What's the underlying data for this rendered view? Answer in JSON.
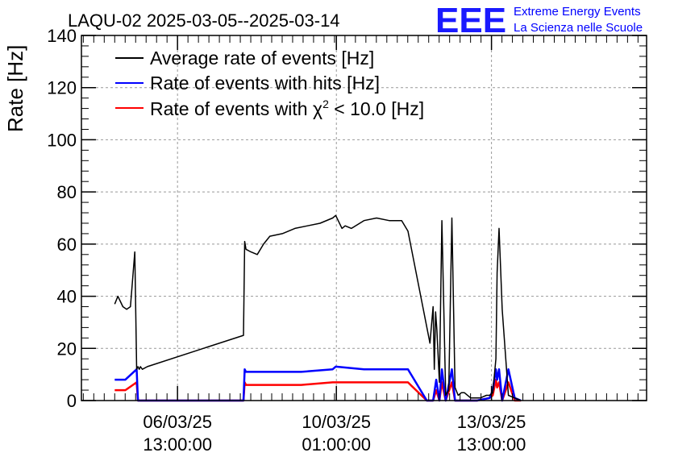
{
  "chart_data": {
    "type": "line",
    "title": "LAQU-02 2025-03-05--2025-03-14",
    "xlabel": "",
    "ylabel": "Rate [Hz]",
    "ylim": [
      0,
      140
    ],
    "yticks": [
      0,
      20,
      40,
      60,
      80,
      100,
      120,
      140
    ],
    "x_unit": "days",
    "xlim": [
      0,
      9
    ],
    "xtick_values": [
      1.53,
      4.06,
      6.53
    ],
    "xticks": [
      {
        "date": "06/03/25",
        "time": "13:00:00"
      },
      {
        "date": "10/03/25",
        "time": "01:00:00"
      },
      {
        "date": "13/03/25",
        "time": "13:00:00"
      }
    ],
    "grid": true,
    "legend_position": "top-left",
    "series": [
      {
        "name": "Average rate of events [Hz]",
        "color": "#000000",
        "x": [
          0.53,
          0.58,
          0.62,
          0.66,
          0.72,
          0.78,
          0.85,
          0.88,
          0.9,
          0.92,
          0.94,
          0.97,
          1.05,
          2.58,
          2.6,
          2.62,
          2.7,
          2.8,
          2.9,
          3.0,
          3.2,
          3.4,
          3.6,
          3.8,
          4.0,
          4.05,
          4.15,
          4.2,
          4.3,
          4.5,
          4.7,
          4.9,
          5.1,
          5.2,
          5.55,
          5.6,
          5.62,
          5.64,
          5.66,
          5.7,
          5.74,
          5.8,
          5.85,
          5.9,
          5.95,
          6.0,
          6.05,
          6.1,
          6.2,
          6.35,
          6.45,
          6.5,
          6.55,
          6.6,
          6.62,
          6.65,
          6.7,
          6.8,
          6.9,
          7.0
        ],
        "y": [
          37,
          40,
          38,
          36,
          35,
          36,
          57,
          12,
          13,
          12,
          13,
          12,
          13,
          25,
          61,
          58,
          57,
          56,
          60,
          63,
          64,
          66,
          67,
          68,
          70,
          71,
          66,
          67,
          66,
          69,
          70,
          69,
          69,
          65,
          22,
          36,
          12,
          34,
          27,
          7,
          69,
          2,
          4,
          70,
          5,
          2,
          3,
          3,
          1,
          1,
          2,
          2,
          3,
          16,
          49,
          66,
          35,
          2,
          1,
          0
        ]
      },
      {
        "name": "Rate of events with hits [Hz]",
        "color": "#0000ff",
        "x": [
          0.53,
          0.7,
          0.88,
          0.9,
          0.92,
          1.0,
          2.58,
          2.6,
          2.62,
          3.0,
          3.5,
          4.0,
          4.05,
          4.5,
          5.0,
          5.2,
          5.5,
          5.6,
          5.65,
          5.7,
          5.74,
          5.8,
          5.9,
          5.95,
          6.0,
          6.3,
          6.5,
          6.55,
          6.6,
          6.62,
          6.65,
          6.7,
          6.8,
          6.9,
          7.0
        ],
        "y": [
          8,
          8,
          12,
          0,
          0,
          0,
          0,
          12,
          11,
          11,
          11,
          12,
          13,
          12,
          12,
          12,
          0,
          0,
          8,
          0,
          12,
          0,
          12,
          0,
          0,
          0,
          1,
          4,
          12,
          8,
          12,
          0,
          12,
          1,
          0
        ]
      },
      {
        "name": "Rate of events with χ² < 10.0 [Hz]",
        "color": "#ff0000",
        "x": [
          0.53,
          0.7,
          0.88,
          0.9,
          0.92,
          1.0,
          2.58,
          2.6,
          2.62,
          3.0,
          3.5,
          4.0,
          4.05,
          4.5,
          5.0,
          5.2,
          5.5,
          5.6,
          5.65,
          5.7,
          5.74,
          5.8,
          5.9,
          5.95,
          6.0,
          6.3,
          6.5,
          6.55,
          6.6,
          6.62,
          6.65,
          6.7,
          6.8,
          6.9,
          7.0
        ],
        "y": [
          4,
          4,
          7,
          0,
          0,
          0,
          0,
          7,
          6,
          6,
          6,
          7,
          7,
          7,
          7,
          7,
          0,
          0,
          4,
          0,
          7,
          0,
          7,
          0,
          0,
          0,
          1,
          2,
          8,
          5,
          7,
          0,
          7,
          0,
          0
        ]
      }
    ]
  },
  "logo": {
    "letters": "EEE",
    "line1": "Extreme Energy Events",
    "line2": "La Scienza nelle Scuole"
  },
  "legend": {
    "line1": "Average rate of events [Hz]",
    "line2": "Rate of events with hits [Hz]",
    "line3_prefix": "Rate of events with ",
    "line3_chi": "χ",
    "line3_sup": "2",
    "line3_suffix": " < 10.0 [Hz]"
  }
}
